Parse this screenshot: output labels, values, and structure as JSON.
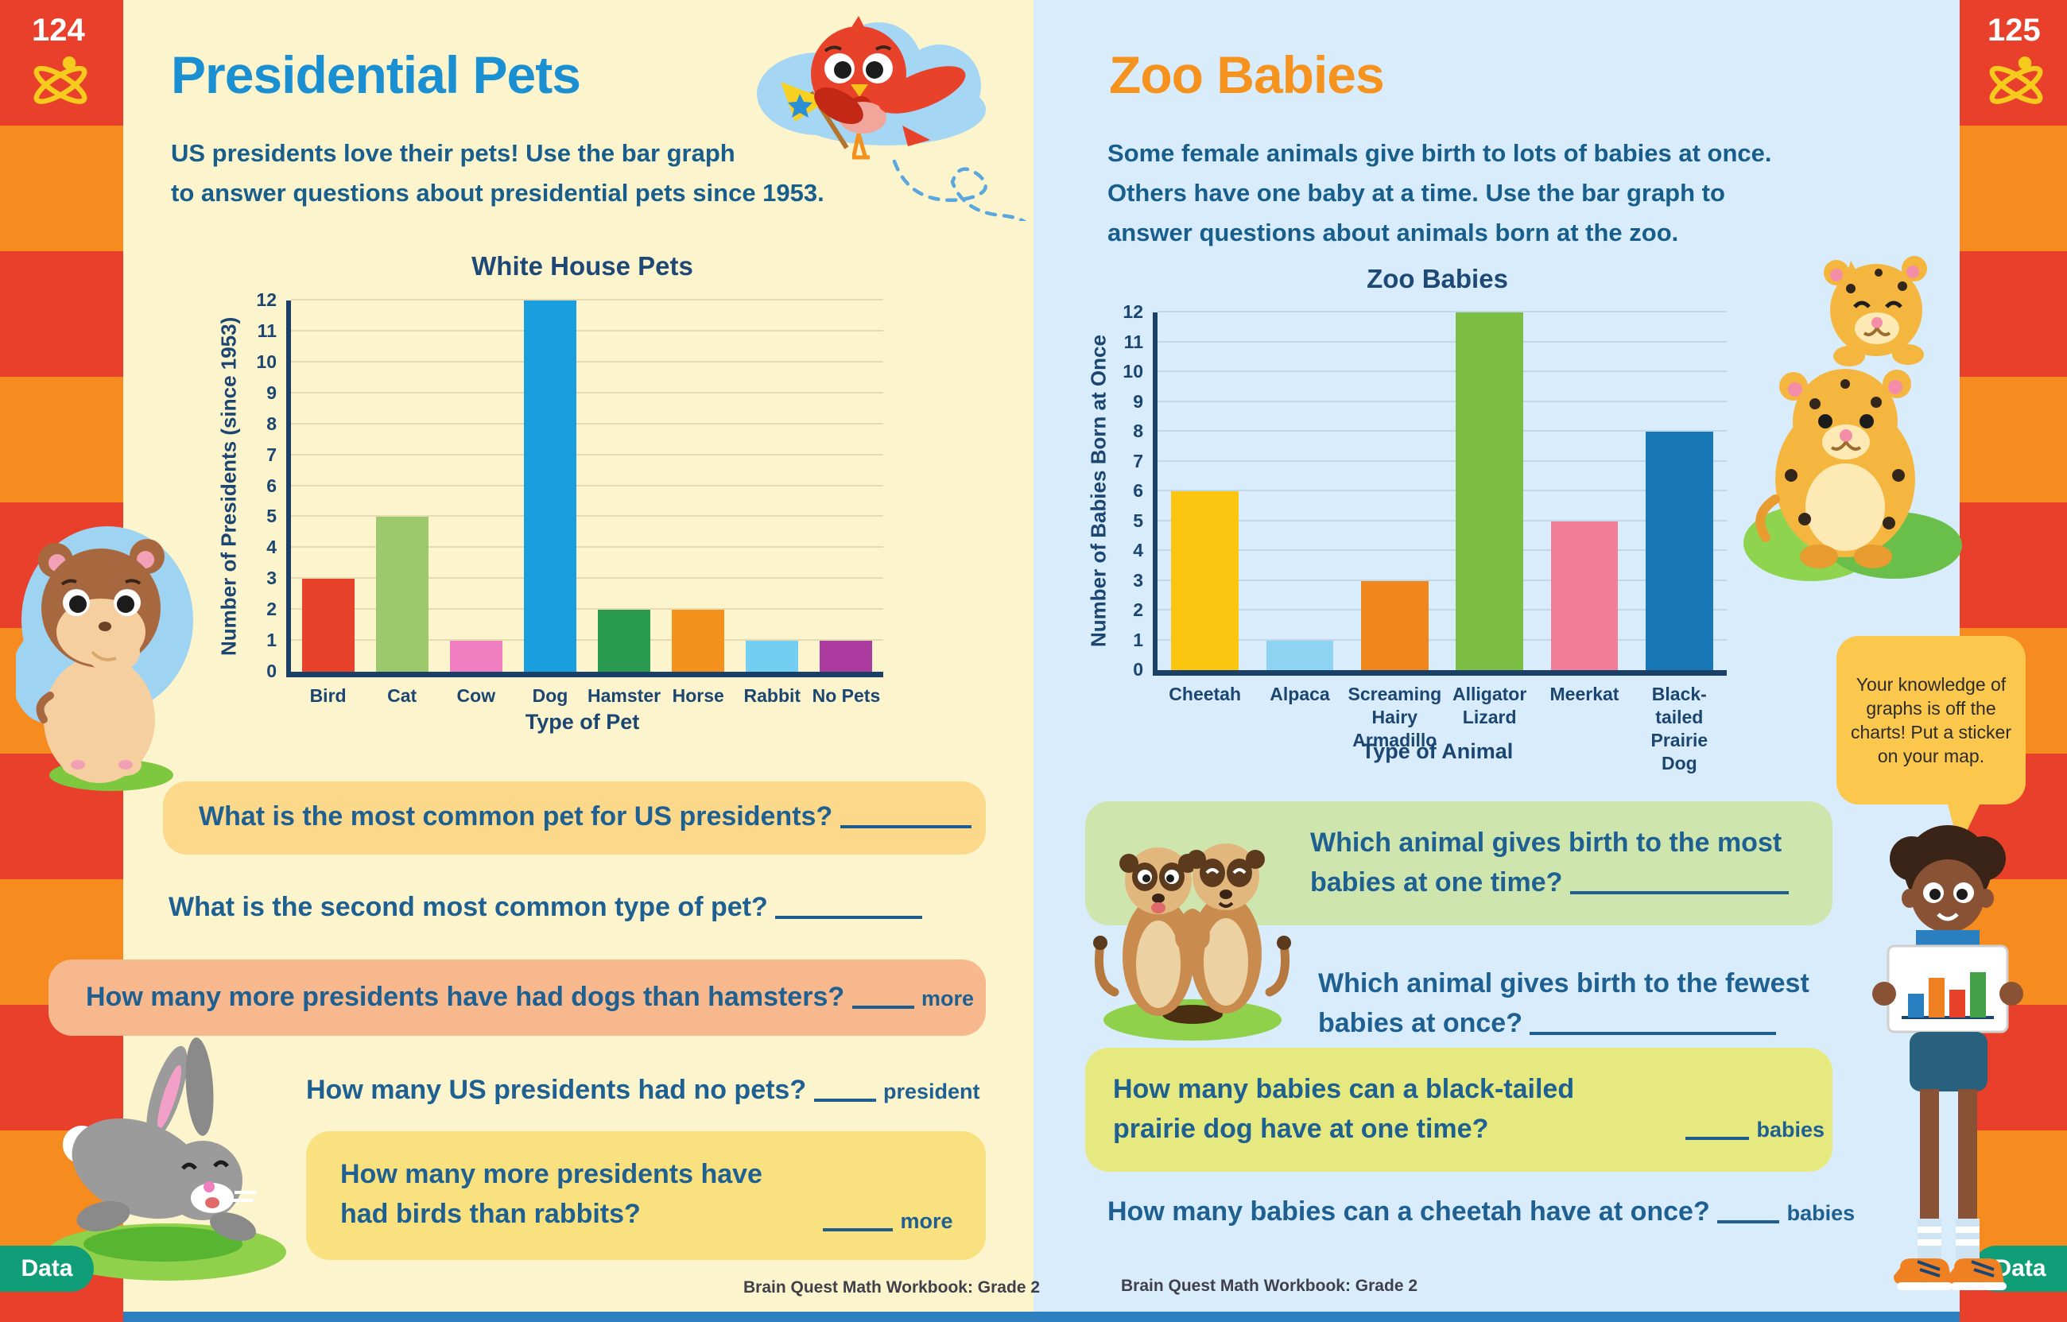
{
  "page_left": {
    "page_number": "124",
    "title": "Presidential Pets",
    "title_color": "#1a8fd1",
    "intro_line1": "US presidents love their pets! Use the bar graph",
    "intro_line2": "to answer questions about presidential pets since 1953.",
    "q1": "What is the most common pet for US presidents?",
    "q2": "What is the second most common type of pet?",
    "q3": "How many more presidents have had dogs than hamsters?",
    "q3_suffix": "more",
    "q4": "How many US presidents had no pets?",
    "q4_suffix": "president",
    "q5_line1": "How many more presidents have",
    "q5_line2": "had birds than rabbits?",
    "q5_suffix": "more",
    "q1_box_color": "#fcd88b",
    "q3_box_color": "#f7b88d",
    "q5_box_color": "#f9e17f",
    "footer": "Brain Quest Math Workbook: Grade 2",
    "data_badge": "Data"
  },
  "page_right": {
    "page_number": "125",
    "title": "Zoo Babies",
    "title_color": "#f6921e",
    "intro_line1": "Some female animals give birth to lots of babies at once.",
    "intro_line2": "Others have one baby at a time. Use the bar graph to",
    "intro_line3": "answer questions about animals born at the zoo.",
    "q1_line1": "Which animal gives birth to the most",
    "q1_line2": "babies at one time?",
    "q2_line1": "Which animal gives birth to the fewest",
    "q2_line2": "babies at once?",
    "q3_line1": "How many babies can a black-tailed",
    "q3_line2": "prairie dog have at one time?",
    "q3_suffix": "babies",
    "q4": "How many babies can a cheetah have at once?",
    "q4_suffix": "babies",
    "q1_box_color": "#cfe5ae",
    "q3_box_color": "#e6e97f",
    "speech_bubble": "Your knowledge of graphs is off the charts! Put a sticker on your map.",
    "footer": "Brain Quest Math Workbook: Grade 2",
    "data_badge": "Data"
  },
  "chart_data": [
    {
      "type": "bar",
      "title": "White House Pets",
      "categories": [
        [
          "Bird"
        ],
        [
          "Cat"
        ],
        [
          "Cow"
        ],
        [
          "Dog"
        ],
        [
          "Hamster"
        ],
        [
          "Horse"
        ],
        [
          "Rabbit"
        ],
        [
          "No Pets"
        ]
      ],
      "values": [
        3,
        5,
        1,
        12,
        2,
        2,
        1,
        1
      ],
      "bar_colors": [
        "#e8432a",
        "#9cc96b",
        "#ef7fc1",
        "#199fdd",
        "#2b9b51",
        "#f3911c",
        "#74cef2",
        "#ab3b9e"
      ],
      "xlabel": "Type of Pet",
      "ylabel": "Number of Presidents (since 1953)",
      "ylim": [
        0,
        12
      ],
      "ytick_step": 1,
      "grid": true,
      "grid_color": "#e6dab2",
      "axis_color": "#1a4068",
      "legend": "none"
    },
    {
      "type": "bar",
      "title": "Zoo Babies",
      "categories": [
        [
          "Cheetah"
        ],
        [
          "Alpaca"
        ],
        [
          "Screaming",
          "Hairy Armadillo"
        ],
        [
          "Alligator",
          "Lizard"
        ],
        [
          "Meerkat"
        ],
        [
          "Black-tailed",
          "Prairie Dog"
        ]
      ],
      "values": [
        6,
        1,
        3,
        12,
        5,
        8
      ],
      "bar_colors": [
        "#fcc50f",
        "#8ed4f2",
        "#f0871d",
        "#7cbe44",
        "#f27e96",
        "#1778b5"
      ],
      "xlabel": "Type of Animal",
      "ylabel": "Number of Babies Born at Once",
      "ylim": [
        0,
        12
      ],
      "ytick_step": 1,
      "grid": true,
      "grid_color": "#c2d7e8",
      "axis_color": "#1a4068",
      "legend": "none"
    }
  ]
}
